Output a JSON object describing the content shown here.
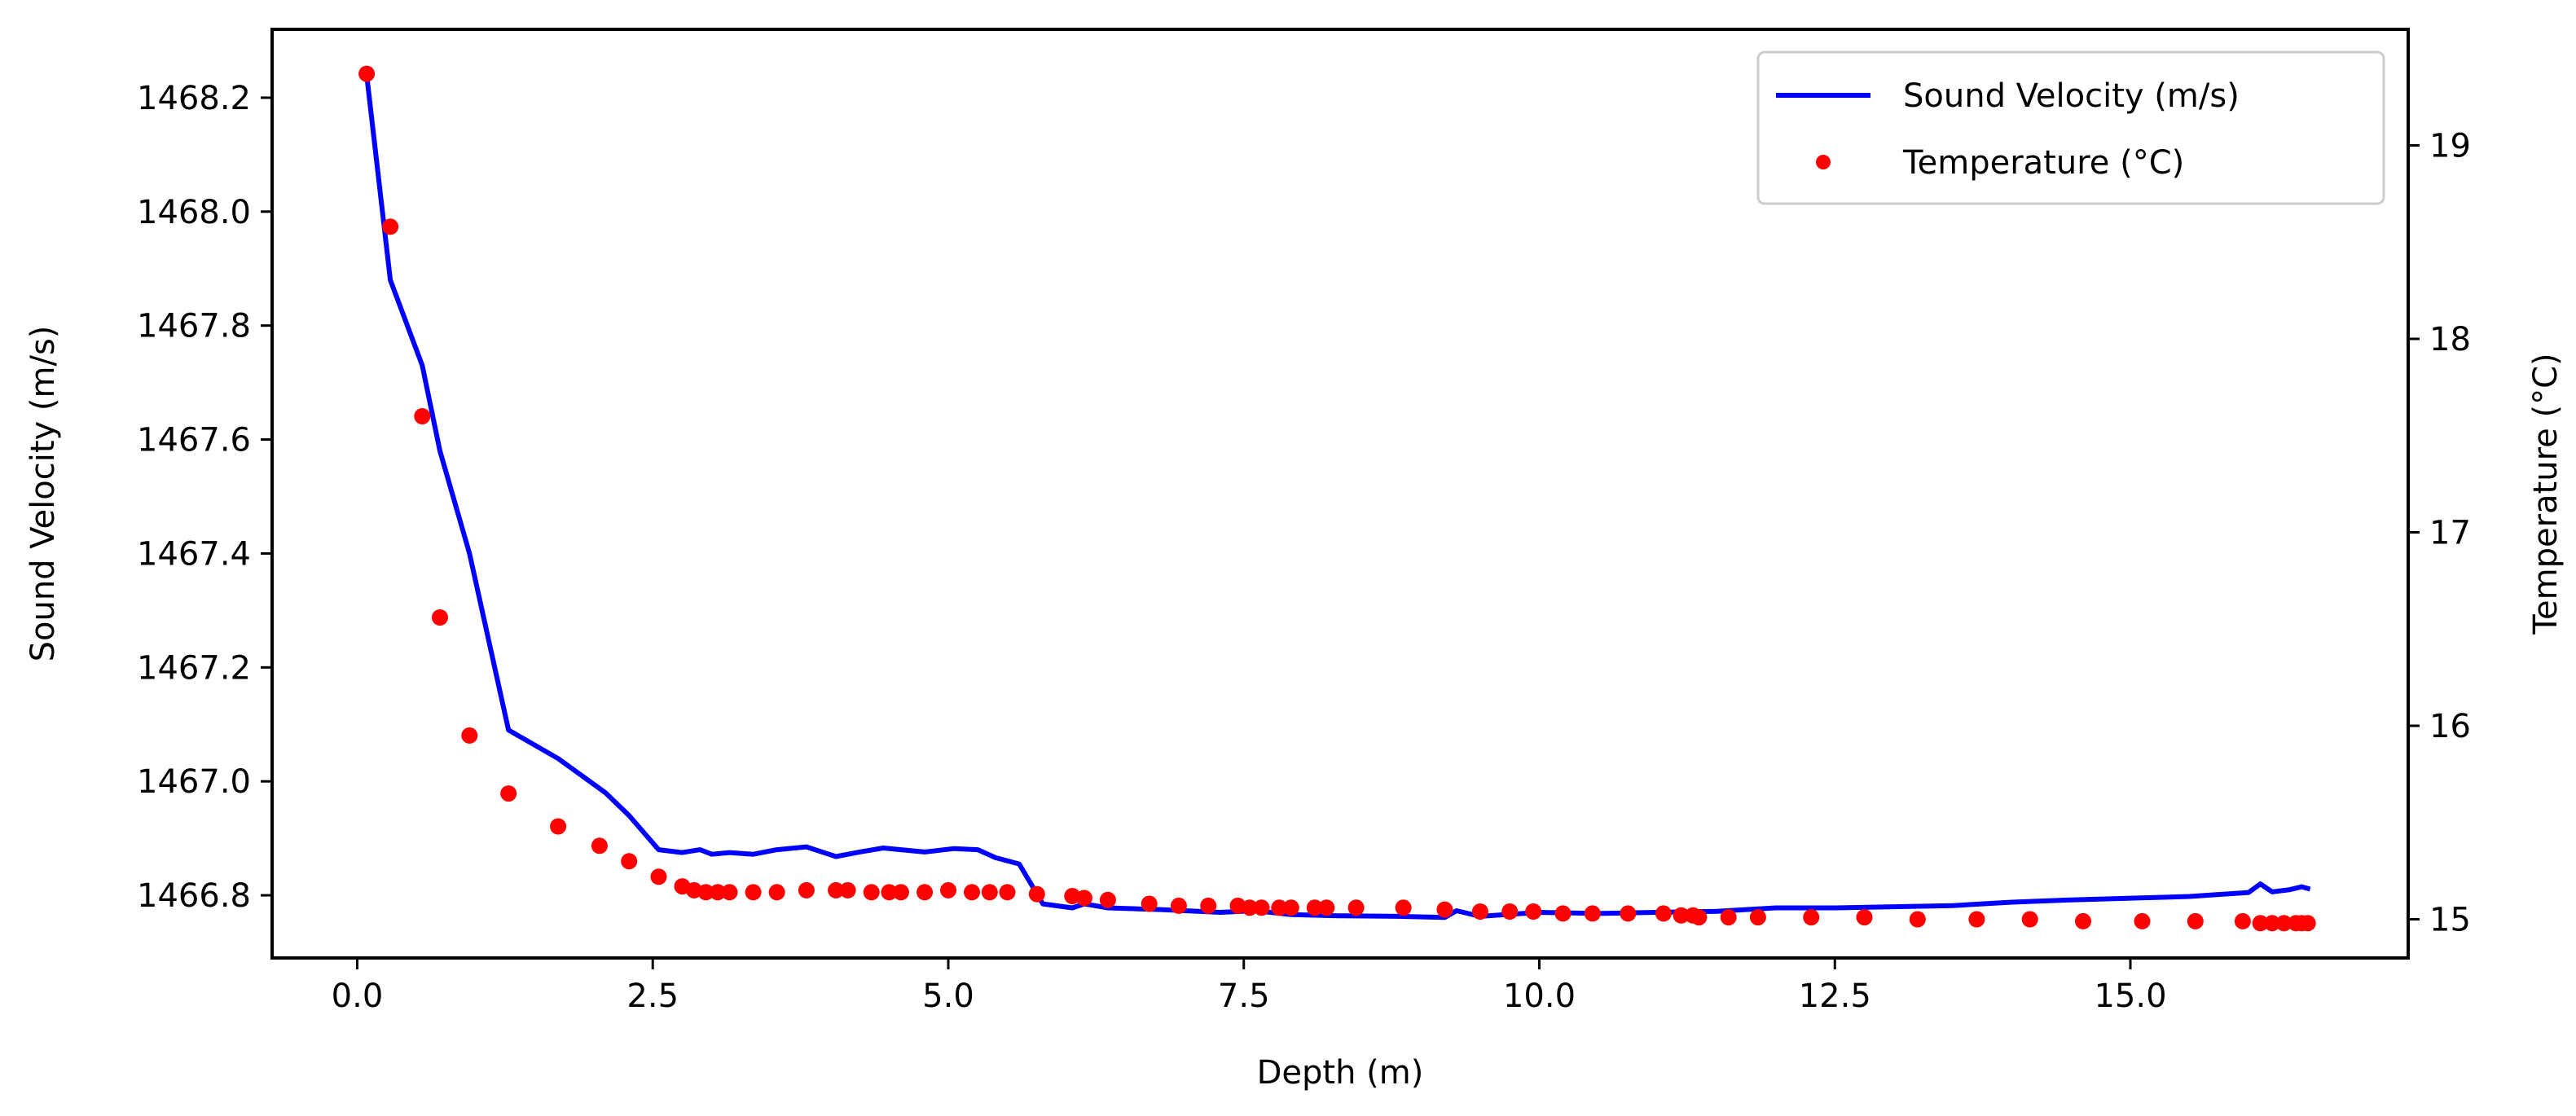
{
  "chart_data": {
    "type": "line+scatter",
    "title": "",
    "xlabel": "Depth (m)",
    "ylabel": "Sound Velocity (m/s)",
    "y2label": "Temperature (°C)",
    "xlim": [
      -0.72,
      17.35
    ],
    "ylim": [
      1466.69,
      1468.32
    ],
    "y2lim": [
      14.8,
      19.6
    ],
    "xticks": [
      "0.0",
      "2.5",
      "5.0",
      "7.5",
      "10.0",
      "12.5",
      "15.0"
    ],
    "xtick_values": [
      0,
      2.5,
      5,
      7.5,
      10,
      12.5,
      15
    ],
    "yticks": [
      "1466.8",
      "1467.0",
      "1467.2",
      "1467.4",
      "1467.6",
      "1467.8",
      "1468.0",
      "1468.2"
    ],
    "ytick_values": [
      1466.8,
      1467.0,
      1467.2,
      1467.4,
      1467.6,
      1467.8,
      1468.0,
      1468.2
    ],
    "y2ticks": [
      "15",
      "16",
      "17",
      "18",
      "19"
    ],
    "y2tick_values": [
      15,
      16,
      17,
      18,
      19
    ],
    "legend": {
      "placement": "top-right"
    },
    "series": [
      {
        "name": "Sound Velocity (m/s)",
        "kind": "line",
        "axis": "left",
        "color": "#0000ff",
        "x": [
          0.08,
          0.28,
          0.55,
          0.7,
          0.95,
          1.28,
          1.7,
          2.1,
          2.3,
          2.55,
          2.75,
          2.9,
          3.0,
          3.15,
          3.35,
          3.55,
          3.8,
          4.05,
          4.25,
          4.45,
          4.6,
          4.8,
          5.05,
          5.25,
          5.4,
          5.6,
          5.8,
          6.05,
          6.15,
          6.35,
          6.8,
          7.3,
          7.6,
          7.9,
          8.3,
          8.8,
          9.2,
          9.3,
          9.5,
          10.0,
          10.5,
          11.0,
          11.5,
          12.0,
          12.5,
          13.0,
          13.5,
          14.0,
          14.5,
          15.0,
          15.5,
          16.0,
          16.1,
          16.2,
          16.35,
          16.45,
          16.5
        ],
        "values": [
          1468.24,
          1467.88,
          1467.73,
          1467.58,
          1467.4,
          1467.09,
          1467.04,
          1466.98,
          1466.94,
          1466.88,
          1466.875,
          1466.88,
          1466.872,
          1466.875,
          1466.872,
          1466.88,
          1466.885,
          1466.868,
          1466.876,
          1466.883,
          1466.88,
          1466.876,
          1466.882,
          1466.88,
          1466.866,
          1466.855,
          1466.785,
          1466.778,
          1466.785,
          1466.778,
          1466.775,
          1466.77,
          1466.773,
          1466.766,
          1466.764,
          1466.763,
          1466.761,
          1466.773,
          1466.763,
          1466.77,
          1466.768,
          1466.77,
          1466.772,
          1466.778,
          1466.778,
          1466.78,
          1466.782,
          1466.788,
          1466.792,
          1466.795,
          1466.798,
          1466.805,
          1466.82,
          1466.806,
          1466.81,
          1466.815,
          1466.812
        ]
      },
      {
        "name": "Temperature (°C)",
        "kind": "scatter",
        "axis": "right",
        "color": "#ff0000",
        "x": [
          0.08,
          0.28,
          0.55,
          0.7,
          0.95,
          1.28,
          1.7,
          2.05,
          2.3,
          2.55,
          2.75,
          2.85,
          2.95,
          3.05,
          3.15,
          3.35,
          3.55,
          3.8,
          4.05,
          4.15,
          4.35,
          4.5,
          4.6,
          4.8,
          5.0,
          5.2,
          5.35,
          5.5,
          5.75,
          6.05,
          6.15,
          6.35,
          6.7,
          6.95,
          7.2,
          7.45,
          7.55,
          7.65,
          7.8,
          7.9,
          8.1,
          8.2,
          8.45,
          8.85,
          9.2,
          9.5,
          9.75,
          9.95,
          10.2,
          10.45,
          10.75,
          11.05,
          11.2,
          11.3,
          11.35,
          11.6,
          11.85,
          12.3,
          12.75,
          13.2,
          13.7,
          14.15,
          14.6,
          15.1,
          15.55,
          15.95,
          16.1,
          16.2,
          16.3,
          16.4,
          16.45,
          16.5
        ],
        "values": [
          19.37,
          18.58,
          17.6,
          16.56,
          15.95,
          15.65,
          15.48,
          15.38,
          15.3,
          15.22,
          15.17,
          15.15,
          15.14,
          15.14,
          15.14,
          15.14,
          15.14,
          15.15,
          15.15,
          15.15,
          15.14,
          15.14,
          15.14,
          15.14,
          15.15,
          15.14,
          15.14,
          15.14,
          15.13,
          15.12,
          15.11,
          15.1,
          15.08,
          15.07,
          15.07,
          15.07,
          15.06,
          15.06,
          15.06,
          15.06,
          15.06,
          15.06,
          15.06,
          15.06,
          15.05,
          15.04,
          15.04,
          15.04,
          15.03,
          15.03,
          15.03,
          15.03,
          15.02,
          15.02,
          15.01,
          15.01,
          15.01,
          15.01,
          15.01,
          15.0,
          15.0,
          15.0,
          14.99,
          14.99,
          14.99,
          14.99,
          14.98,
          14.98,
          14.98,
          14.98,
          14.98,
          14.98
        ]
      }
    ]
  }
}
